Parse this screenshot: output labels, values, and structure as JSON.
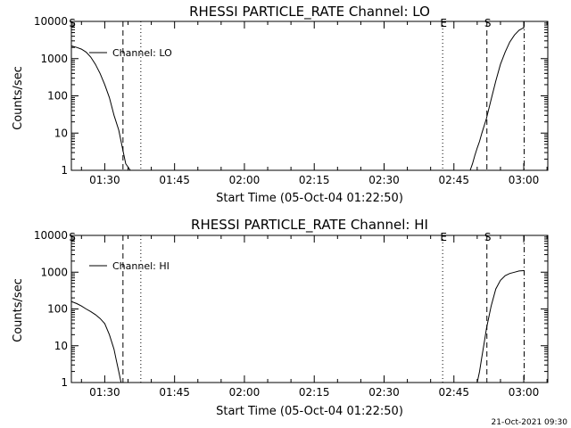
{
  "chart_data": [
    {
      "type": "line",
      "title": "RHESSI PARTICLE_RATE Channel: LO",
      "xlabel": "Start Time (05-Oct-04 01:22:50)",
      "ylabel": "Counts/sec",
      "yscale": "log",
      "ylim": [
        1,
        10000
      ],
      "xlim": [
        "01:22:50",
        "03:05:10"
      ],
      "xticks": [
        "01:30",
        "01:45",
        "02:00",
        "02:15",
        "02:30",
        "02:45",
        "03:00"
      ],
      "yticks": [
        "1",
        "10",
        "100",
        "1000",
        "10000"
      ],
      "legend": "Channel: LO",
      "legend_position": "top-left",
      "series": [
        {
          "name": "Channel: LO",
          "segments": [
            [
              [
                "01:22:50",
                2200
              ],
              [
                "01:24:00",
                2000
              ],
              [
                "01:25:00",
                1800
              ],
              [
                "01:26:00",
                1500
              ],
              [
                "01:27:00",
                1100
              ],
              [
                "01:28:00",
                700
              ],
              [
                "01:29:00",
                400
              ],
              [
                "01:30:00",
                200
              ],
              [
                "01:31:00",
                90
              ],
              [
                "01:32:00",
                30
              ],
              [
                "01:33:00",
                12
              ],
              [
                "01:33:30",
                6
              ],
              [
                "01:34:00",
                3
              ],
              [
                "01:34:30",
                1.5
              ],
              [
                "01:35:30",
                1.0
              ]
            ],
            [
              [
                "02:48:30",
                1.0
              ],
              [
                "02:49:00",
                1.5
              ],
              [
                "02:49:30",
                2.5
              ],
              [
                "02:50:00",
                4
              ],
              [
                "02:50:30",
                6
              ],
              [
                "02:51:00",
                10
              ],
              [
                "02:52:00",
                25
              ],
              [
                "02:53:00",
                80
              ],
              [
                "02:54:00",
                250
              ],
              [
                "02:55:00",
                700
              ],
              [
                "02:56:00",
                1500
              ],
              [
                "02:57:00",
                2800
              ],
              [
                "02:58:00",
                4300
              ],
              [
                "02:59:00",
                5800
              ],
              [
                "03:00:00",
                6800
              ]
            ]
          ]
        }
      ],
      "vlines": [
        {
          "time": "01:22:50",
          "style": "dashdot",
          "label": "S"
        },
        {
          "time": "01:33:55",
          "style": "dashed",
          "label": ""
        },
        {
          "time": "01:37:45",
          "style": "dotted",
          "label": ""
        },
        {
          "time": "02:42:35",
          "style": "dotted",
          "label": "E"
        },
        {
          "time": "02:52:05",
          "style": "dashed",
          "label": "S"
        },
        {
          "time": "03:00:05",
          "style": "dashdot",
          "label": ""
        }
      ]
    },
    {
      "type": "line",
      "title": "RHESSI PARTICLE_RATE Channel: HI",
      "xlabel": "Start Time (05-Oct-04 01:22:50)",
      "ylabel": "Counts/sec",
      "yscale": "log",
      "ylim": [
        1,
        10000
      ],
      "xlim": [
        "01:22:50",
        "03:05:10"
      ],
      "xticks": [
        "01:30",
        "01:45",
        "02:00",
        "02:15",
        "02:30",
        "02:45",
        "03:00"
      ],
      "yticks": [
        "1",
        "10",
        "100",
        "1000",
        "10000"
      ],
      "legend": "Channel: HI",
      "legend_position": "top-left",
      "series": [
        {
          "name": "Channel: HI",
          "segments": [
            [
              [
                "01:22:50",
                160
              ],
              [
                "01:24:00",
                140
              ],
              [
                "01:25:00",
                120
              ],
              [
                "01:26:00",
                100
              ],
              [
                "01:27:00",
                85
              ],
              [
                "01:28:00",
                70
              ],
              [
                "01:29:00",
                55
              ],
              [
                "01:30:00",
                40
              ],
              [
                "01:31:00",
                20
              ],
              [
                "01:32:00",
                8
              ],
              [
                "01:32:30",
                4
              ],
              [
                "01:33:00",
                2
              ],
              [
                "01:33:30",
                1.0
              ]
            ],
            [
              [
                "02:50:00",
                1.0
              ],
              [
                "02:50:30",
                2
              ],
              [
                "02:51:00",
                5
              ],
              [
                "02:51:30",
                12
              ],
              [
                "02:52:00",
                30
              ],
              [
                "02:53:00",
                120
              ],
              [
                "02:54:00",
                350
              ],
              [
                "02:55:00",
                600
              ],
              [
                "02:56:00",
                800
              ],
              [
                "02:57:00",
                920
              ],
              [
                "02:58:00",
                1000
              ],
              [
                "02:59:00",
                1080
              ],
              [
                "03:00:00",
                1100
              ]
            ]
          ]
        }
      ],
      "vlines": [
        {
          "time": "01:22:50",
          "style": "dashdot",
          "label": "S"
        },
        {
          "time": "01:33:55",
          "style": "dashed",
          "label": ""
        },
        {
          "time": "01:37:45",
          "style": "dotted",
          "label": ""
        },
        {
          "time": "02:42:35",
          "style": "dotted",
          "label": "E"
        },
        {
          "time": "02:52:05",
          "style": "dashed",
          "label": "S"
        },
        {
          "time": "03:00:05",
          "style": "dashdot",
          "label": ""
        }
      ]
    }
  ],
  "footer": {
    "timestamp": "21-Oct-2021 09:30"
  },
  "colors": {
    "background": "#ffffff",
    "foreground": "#000000"
  }
}
